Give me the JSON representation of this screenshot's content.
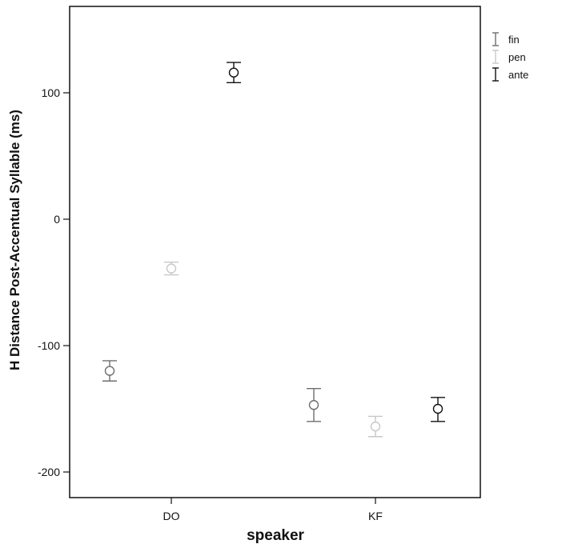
{
  "chart_data": {
    "type": "scatter",
    "subtype": "error-bar",
    "xlabel": "speaker",
    "ylabel": "H Distance Post-Accentual Syllable (ms)",
    "categories": [
      "DO",
      "KF"
    ],
    "ylim": [
      -220,
      170
    ],
    "yticks": [
      100,
      0,
      -100,
      -200
    ],
    "grid": false,
    "legend_position": "top-right, outside plot",
    "series": [
      {
        "name": "fin",
        "color": "#6e6e6e",
        "points": [
          {
            "category": "DO",
            "mean": -120,
            "lower": -128,
            "upper": -112
          },
          {
            "category": "KF",
            "mean": -147,
            "lower": -160,
            "upper": -134
          }
        ]
      },
      {
        "name": "pen",
        "color": "#c8c8c8",
        "points": [
          {
            "category": "DO",
            "mean": -39,
            "lower": -44,
            "upper": -34
          },
          {
            "category": "KF",
            "mean": -164,
            "lower": -172,
            "upper": -156
          }
        ]
      },
      {
        "name": "ante",
        "color": "#111111",
        "points": [
          {
            "category": "DO",
            "mean": 116,
            "lower": 108,
            "upper": 124
          },
          {
            "category": "KF",
            "mean": -150,
            "lower": -160,
            "upper": -141
          }
        ]
      }
    ]
  }
}
